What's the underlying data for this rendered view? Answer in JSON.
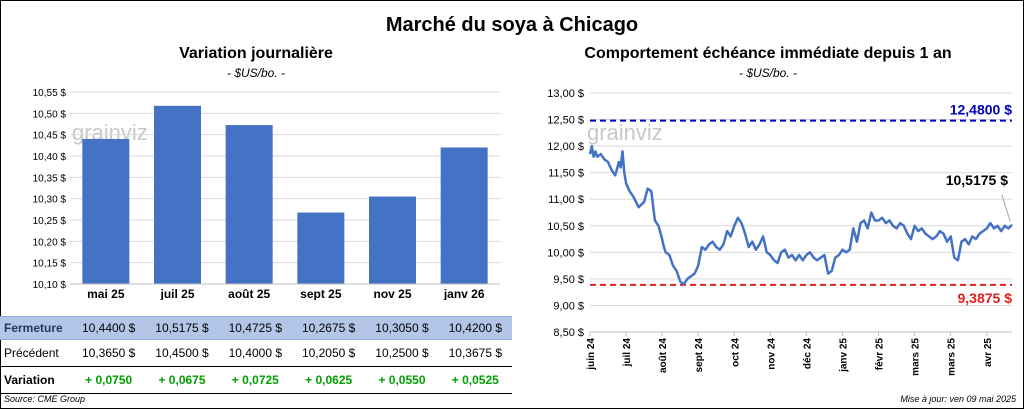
{
  "title": "Marché du soya à Chicago",
  "left_panel": {
    "title": "Variation journalière",
    "subtitle": "- $US/bo. -",
    "watermark": "grainviz"
  },
  "right_panel": {
    "title": "Comportement échéance immédiate depuis 1 an",
    "subtitle": "- $US/bo. -",
    "watermark": "grainviz"
  },
  "table": {
    "rows": [
      {
        "label": "Fermeture",
        "values": [
          "10,4400  $",
          "10,5175  $",
          "10,4725  $",
          "10,2675  $",
          "10,3050  $",
          "10,4200  $"
        ]
      },
      {
        "label": "Précédent",
        "values": [
          "10,3650  $",
          "10,4500  $",
          "10,4000  $",
          "10,2050  $",
          "10,2500  $",
          "10,3675  $"
        ]
      },
      {
        "label": "Variation",
        "values": [
          "+ 0,0750",
          "+ 0,0675",
          "+ 0,0725",
          "+ 0,0625",
          "+ 0,0550",
          "+ 0,0525"
        ]
      }
    ]
  },
  "footer": {
    "source": "Source: CME Group",
    "updated": "Mise à jour: ven 09 mai 2025"
  },
  "chart_data": [
    {
      "type": "bar",
      "title": "Variation journalière",
      "categories": [
        "mai 25",
        "juil 25",
        "août 25",
        "sept 25",
        "nov 25",
        "janv 26"
      ],
      "values": [
        10.44,
        10.5175,
        10.4725,
        10.2675,
        10.305,
        10.42
      ],
      "ylim": [
        10.1,
        10.55
      ],
      "yticks": [
        10.1,
        10.15,
        10.2,
        10.25,
        10.3,
        10.35,
        10.4,
        10.45,
        10.5,
        10.55
      ],
      "ytick_labels": [
        "10,10 $",
        "10,15 $",
        "10,20 $",
        "10,25 $",
        "10,30 $",
        "10,35 $",
        "10,40 $",
        "10,45 $",
        "10,50 $",
        "10,55 $"
      ],
      "grid": "horizontal",
      "color": "#4472c4"
    },
    {
      "type": "line",
      "title": "Comportement échéance immédiate depuis 1 an",
      "x_tick_labels": [
        "juin 24",
        "juil 24",
        "août 24",
        "sept 24",
        "oct 24",
        "nov 24",
        "déc 24",
        "janv 25",
        "févr 25",
        "mars 25",
        "mars 25",
        "avr 25"
      ],
      "x_tick_positions": [
        0,
        1,
        2,
        3,
        4,
        5,
        6,
        7,
        8,
        9,
        10,
        11
      ],
      "ylim": [
        8.5,
        13.0
      ],
      "yticks": [
        8.5,
        9.0,
        9.5,
        10.0,
        10.5,
        11.0,
        11.5,
        12.0,
        12.5,
        13.0
      ],
      "ytick_labels": [
        "8,50 $",
        "9,00 $",
        "9,50 $",
        "10,00 $",
        "10,50 $",
        "11,00 $",
        "11,50 $",
        "12,00 $",
        "12,50 $",
        "13,00 $"
      ],
      "series": [
        {
          "color": "#4472c4",
          "x": [
            0,
            0.05,
            0.1,
            0.15,
            0.2,
            0.3,
            0.4,
            0.5,
            0.6,
            0.7,
            0.8,
            0.85,
            0.9,
            0.95,
            1.0,
            1.1,
            1.2,
            1.35,
            1.5,
            1.6,
            1.7,
            1.8,
            1.9,
            2.0,
            2.05,
            2.1,
            2.2,
            2.3,
            2.4,
            2.5,
            2.6,
            2.7,
            2.8,
            2.9,
            3.0,
            3.1,
            3.2,
            3.3,
            3.4,
            3.5,
            3.6,
            3.7,
            3.8,
            3.9,
            4.0,
            4.1,
            4.2,
            4.3,
            4.4,
            4.5,
            4.6,
            4.7,
            4.8,
            4.9,
            5.0,
            5.1,
            5.2,
            5.3,
            5.4,
            5.5,
            5.6,
            5.7,
            5.8,
            5.9,
            6.0,
            6.1,
            6.2,
            6.3,
            6.4,
            6.5,
            6.6,
            6.7,
            6.8,
            6.9,
            7.0,
            7.1,
            7.2,
            7.3,
            7.4,
            7.5,
            7.6,
            7.7,
            7.8,
            7.9,
            8.0,
            8.1,
            8.2,
            8.3,
            8.4,
            8.5,
            8.6,
            8.7,
            8.8,
            8.9,
            9.0,
            9.1,
            9.2,
            9.3,
            9.4,
            9.5,
            9.6,
            9.7,
            9.8,
            9.9,
            10.0,
            10.1,
            10.2,
            10.3,
            10.4,
            10.5,
            10.6,
            10.7,
            10.8,
            10.9,
            11.0,
            11.1,
            11.2,
            11.3,
            11.4,
            11.5,
            11.6,
            11.7
          ],
          "y": [
            11.85,
            12.0,
            11.8,
            11.9,
            11.8,
            11.85,
            11.75,
            11.7,
            11.55,
            11.45,
            11.7,
            11.6,
            11.9,
            11.5,
            11.3,
            11.15,
            11.05,
            10.85,
            10.95,
            11.2,
            11.15,
            10.6,
            10.5,
            10.25,
            10.1,
            10.0,
            9.95,
            9.75,
            9.65,
            9.45,
            9.4,
            9.5,
            9.55,
            9.6,
            9.75,
            10.1,
            10.05,
            10.15,
            10.2,
            10.1,
            10.05,
            10.15,
            10.4,
            10.3,
            10.5,
            10.65,
            10.55,
            10.35,
            10.1,
            10.2,
            10.05,
            10.15,
            10.3,
            10.0,
            9.95,
            9.85,
            9.8,
            10.0,
            10.05,
            9.9,
            9.95,
            9.85,
            9.95,
            9.85,
            9.95,
            10.0,
            9.9,
            9.85,
            9.9,
            9.95,
            9.6,
            9.65,
            9.9,
            9.95,
            10.05,
            10.0,
            10.05,
            10.45,
            10.2,
            10.55,
            10.6,
            10.45,
            10.75,
            10.6,
            10.6,
            10.65,
            10.55,
            10.6,
            10.5,
            10.45,
            10.55,
            10.5,
            10.35,
            10.25,
            10.5,
            10.4,
            10.45,
            10.35,
            10.3,
            10.25,
            10.3,
            10.4,
            10.35,
            10.2,
            10.3,
            9.9,
            9.85,
            10.2,
            10.25,
            10.15,
            10.3,
            10.25,
            10.35,
            10.4,
            10.45,
            10.55,
            10.45,
            10.5,
            10.4,
            10.5,
            10.45,
            10.5175
          ]
        }
      ],
      "reference_lines": [
        {
          "value": 12.48,
          "label": "12,4800 $",
          "color": "#0000c0"
        },
        {
          "value": 9.3875,
          "label": "9,3875 $",
          "color": "#e02020"
        }
      ],
      "annotations": [
        {
          "label": "10,5175 $",
          "x": 11.7,
          "y": 10.5175
        }
      ]
    }
  ]
}
